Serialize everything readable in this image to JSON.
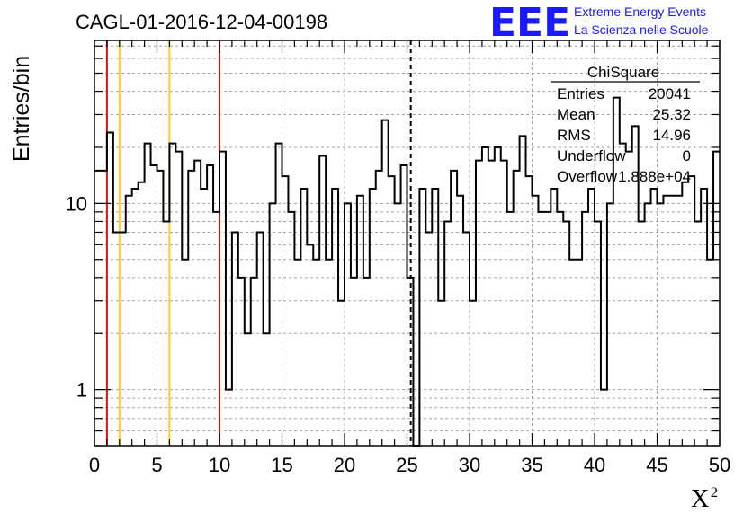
{
  "header": {
    "title": "CAGL-01-2016-12-04-00198",
    "logo_text": "EEE",
    "logo_line1": "Extreme Energy Events",
    "logo_line2": "La Scienza nelle Scuole"
  },
  "stats_box": {
    "title": "ChiSquare",
    "rows": [
      {
        "label": "Entries",
        "value": "20041"
      },
      {
        "label": "Mean",
        "value": "25.32"
      },
      {
        "label": "RMS",
        "value": "14.96"
      },
      {
        "label": "Underflow",
        "value": "0"
      },
      {
        "label": "Overflow",
        "value": "1.888e+04"
      }
    ]
  },
  "colors": {
    "histogram": "#000000",
    "grid": "#a0a0a0",
    "red_line": "#dd1111",
    "yellow_line": "#ffcc22",
    "dashed_line": "#000000",
    "logo": "#1a1aff"
  },
  "chart_data": {
    "type": "histogram",
    "title": "CAGL-01-2016-12-04-00198",
    "xlabel": "X",
    "xlabel_superscript": "2",
    "ylabel": "Entries/bin",
    "xlim": [
      0,
      50
    ],
    "ylim": [
      0.5,
      75
    ],
    "yscale": "log",
    "grid": true,
    "bin_width": 0.5,
    "x_tick_labels": [
      "0",
      "5",
      "10",
      "15",
      "20",
      "25",
      "30",
      "35",
      "40",
      "45",
      "50"
    ],
    "y_tick_labels": [
      {
        "value": 1,
        "label": "1"
      },
      {
        "value": 10,
        "label": "10"
      }
    ],
    "values": [
      15,
      15,
      24,
      7,
      7,
      11,
      12,
      13,
      21,
      16,
      15,
      8,
      21,
      19,
      5,
      15,
      17,
      12,
      16,
      9,
      19,
      1,
      7,
      4,
      2,
      4,
      7,
      2,
      10,
      21,
      14,
      9,
      5,
      12,
      6,
      5,
      18,
      5,
      12,
      3,
      10,
      4,
      11,
      4,
      12,
      15,
      28,
      14,
      10,
      16,
      4,
      0,
      12,
      7,
      12,
      3,
      8,
      15,
      11,
      7,
      3,
      17,
      20,
      17,
      20,
      17,
      9,
      15,
      23,
      14,
      11,
      9,
      9,
      12,
      9,
      8,
      5,
      5,
      9,
      12,
      8,
      1,
      10,
      37,
      21,
      19,
      26,
      8,
      10,
      12,
      10,
      11,
      11,
      11,
      13,
      14,
      8,
      12,
      5,
      19
    ],
    "vertical_lines": [
      {
        "x": 1,
        "style": "red"
      },
      {
        "x": 10,
        "style": "red"
      },
      {
        "x": 2,
        "style": "yellow"
      },
      {
        "x": 6,
        "style": "yellow"
      },
      {
        "x": 25.3,
        "style": "dashed"
      }
    ]
  }
}
